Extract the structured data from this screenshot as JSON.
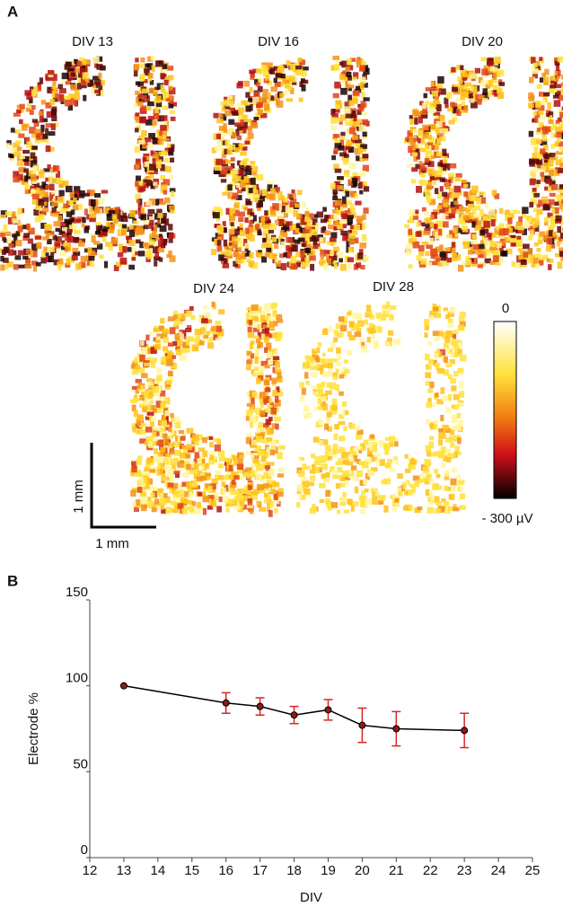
{
  "figure": {
    "panel_a": "A",
    "panel_b": "B",
    "maps": [
      "DIV 13",
      "DIV 16",
      "DIV 20",
      "DIV 24",
      "DIV 28"
    ],
    "colorbar_top": "0",
    "colorbar_bottom": "- 300 µV",
    "scale_vertical": "1 mm",
    "scale_horizontal": "1 mm"
  },
  "chart_data": {
    "type": "line",
    "x_label": "DIV",
    "y_label": "Electrode %",
    "x": [
      13,
      16,
      17,
      18,
      19,
      20,
      21,
      23
    ],
    "series": [
      {
        "name": "Electrode %",
        "color": "#000000",
        "error_color": "#d62728",
        "marker_color": "#8b1a1a",
        "values": [
          100,
          90,
          88,
          83,
          86,
          77,
          75,
          74
        ],
        "errors": [
          0,
          6,
          5,
          5,
          6,
          10,
          10,
          10
        ]
      }
    ],
    "xlim": [
      12,
      25
    ],
    "xticks": [
      12,
      13,
      14,
      15,
      16,
      17,
      18,
      19,
      20,
      21,
      22,
      23,
      24,
      25
    ],
    "ylim": [
      0,
      150
    ],
    "yticks": [
      0,
      50,
      100,
      150
    ]
  }
}
